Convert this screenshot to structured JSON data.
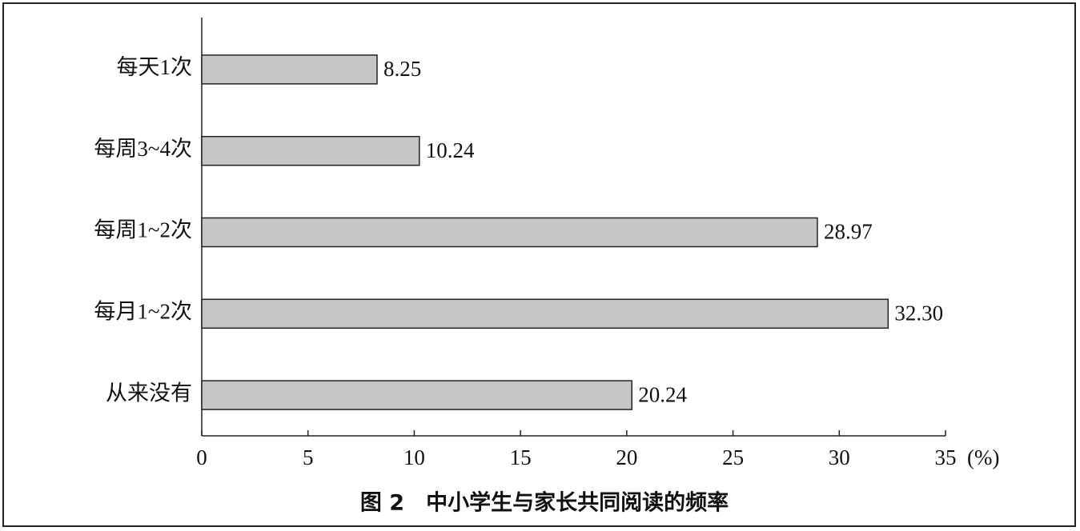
{
  "chart_data": {
    "type": "bar",
    "orientation": "horizontal",
    "title": "图 2　中小学生与家长共同阅读的频率",
    "xlabel": "(%)",
    "categories": [
      "每天1次",
      "每周3~4次",
      "每周1~2次",
      "每月1~2次",
      "从来没有"
    ],
    "values": [
      8.25,
      10.24,
      28.97,
      32.3,
      20.24
    ],
    "value_labels": [
      "8.25",
      "10.24",
      "28.97",
      "32.30",
      "20.24"
    ],
    "color": "#c6c6c6",
    "xlim": [
      0,
      35
    ],
    "xticks": [
      0,
      5,
      10,
      15,
      20,
      25,
      30,
      35
    ],
    "grid": false
  }
}
